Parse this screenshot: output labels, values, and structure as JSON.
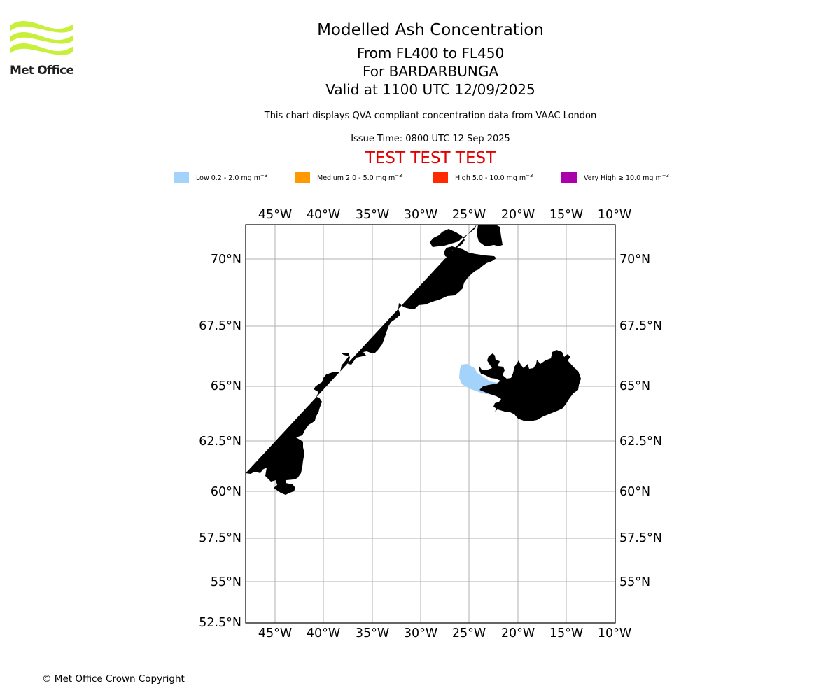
{
  "header": {
    "logo_text": "Met Office",
    "title": "Modelled Ash Concentration",
    "flight_levels": "From FL400 to FL450",
    "volcano": "For BARDARBUNGA",
    "valid_time": "Valid at 1100 UTC 12/09/2025",
    "description": "This chart displays QVA compliant concentration data from VAAC London",
    "issue_time": "Issue Time: 0800 UTC 12 Sep 2025",
    "test_banner": "TEST TEST TEST"
  },
  "legend": [
    {
      "label": "Low 0.2 - 2.0 mg m",
      "unit_exp": "−3",
      "color": "#a3d3fb"
    },
    {
      "label": "Medium 2.0 - 5.0 mg m",
      "unit_exp": "−3",
      "color": "#ff9900"
    },
    {
      "label": "High 5.0 - 10.0 mg m",
      "unit_exp": "−3",
      "color": "#ff2a00"
    },
    {
      "label": "Very High ≥ 10.0 mg m",
      "unit_exp": "−3",
      "color": "#aa00aa"
    }
  ],
  "map": {
    "lon_ticks": [
      "45°W",
      "40°W",
      "35°W",
      "30°W",
      "25°W",
      "20°W",
      "15°W",
      "10°W"
    ],
    "lat_ticks": [
      "70°N",
      "67.5°N",
      "65°N",
      "62.5°N",
      "60°N",
      "57.5°N",
      "55°N",
      "52.5°N"
    ],
    "volcano_symbol": "volcano-marker"
  },
  "footer": {
    "copyright": "© Met Office Crown Copyright"
  }
}
